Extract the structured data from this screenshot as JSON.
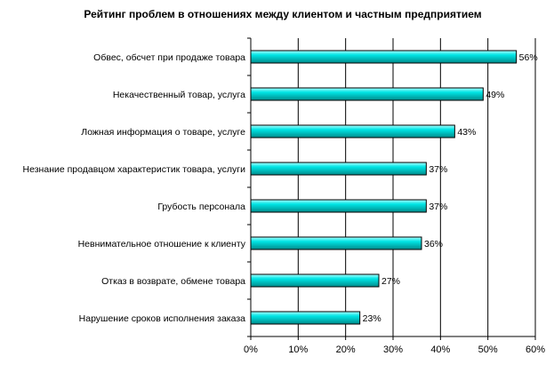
{
  "chart_data": {
    "type": "bar",
    "orientation": "horizontal",
    "title": "Рейтинг проблем в отношениях между клиентом и частным предприятием",
    "xlabel": "",
    "ylabel": "",
    "categories": [
      "Обвес, обсчет при продаже товара",
      "Некачественный товар, услуга",
      "Ложная информация о товаре, услуге",
      "Незнание продавцом характеристик товара, услуги",
      "Грубость персонала",
      "Невнимательное отношение к клиенту",
      "Отказ в возврате, обмене товара",
      "Нарушение сроков исполнения заказа"
    ],
    "values": [
      56,
      49,
      43,
      37,
      37,
      36,
      27,
      23
    ],
    "value_labels": [
      "56%",
      "49%",
      "43%",
      "37%",
      "37%",
      "36%",
      "27%",
      "23%"
    ],
    "xlim": [
      0,
      60
    ],
    "xticks": [
      0,
      10,
      20,
      30,
      40,
      50,
      60
    ],
    "xtick_labels": [
      "0%",
      "10%",
      "20%",
      "30%",
      "40%",
      "50%",
      "60%"
    ],
    "grid": true,
    "legend": "none",
    "bar_color": "#00e5e5",
    "bar_highlight": "#aaffff",
    "bar_shadow": "#008a8a"
  }
}
